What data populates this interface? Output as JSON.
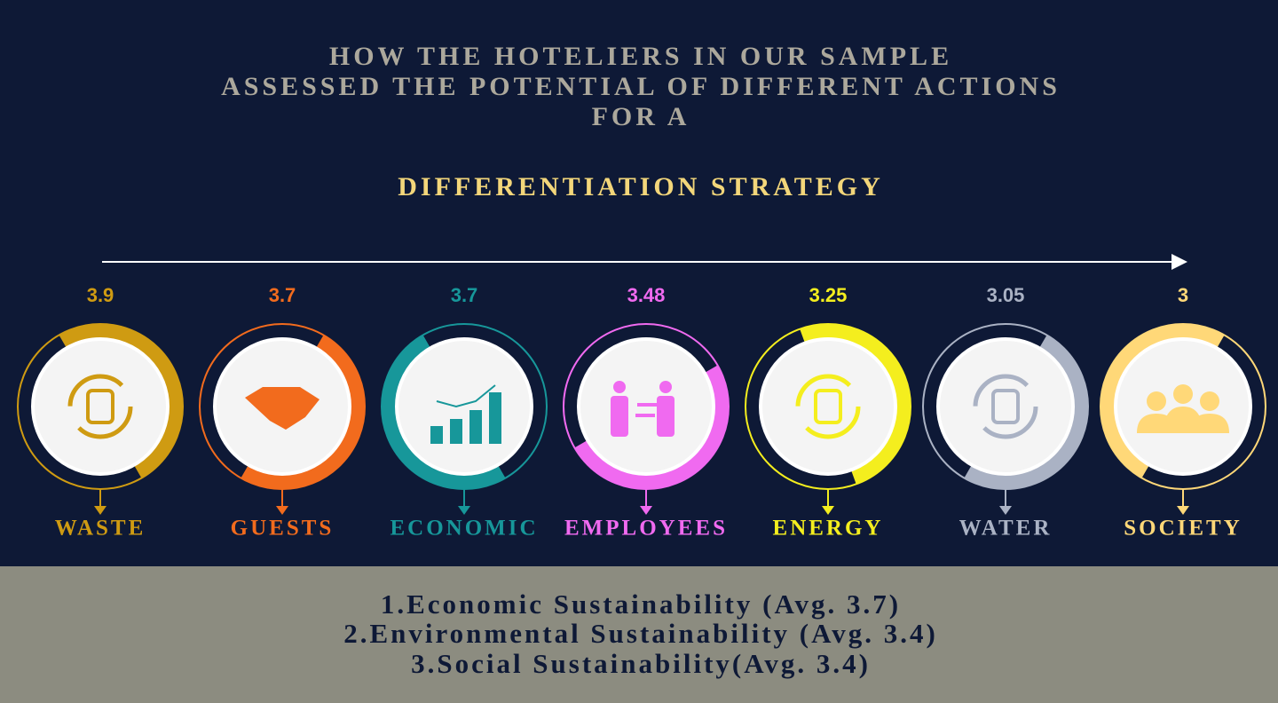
{
  "header": {
    "title_lines": [
      "HOW THE HOTELIERS IN OUR SAMPLE",
      "ASSESSED THE POTENTIAL OF DIFFERENT ACTIONS",
      "FOR A"
    ],
    "subtitle": "DIFFERENTIATION STRATEGY"
  },
  "items": [
    {
      "score": "3.9",
      "label": "WASTE",
      "color": "#cf9b12"
    },
    {
      "score": "3.7",
      "label": "GUESTS",
      "color": "#f26b1d"
    },
    {
      "score": "3.7",
      "label": "ECONOMIC",
      "color": "#17979a"
    },
    {
      "score": "3.48",
      "label": "EMPLOYEES",
      "color": "#f06af0"
    },
    {
      "score": "3.25",
      "label": "ENERGY",
      "color": "#f4ee1e"
    },
    {
      "score": "3.05",
      "label": "WATER",
      "color": "#aab2c4"
    },
    {
      "score": "3",
      "label": "SOCIETY",
      "color": "#ffd878"
    }
  ],
  "footer": {
    "lines": [
      "1.Economic Sustainability (Avg. 3.7)",
      "2.Environmental Sustainability (Avg. 3.4)",
      "3.Social Sustainability(Avg. 3.4)"
    ]
  }
}
